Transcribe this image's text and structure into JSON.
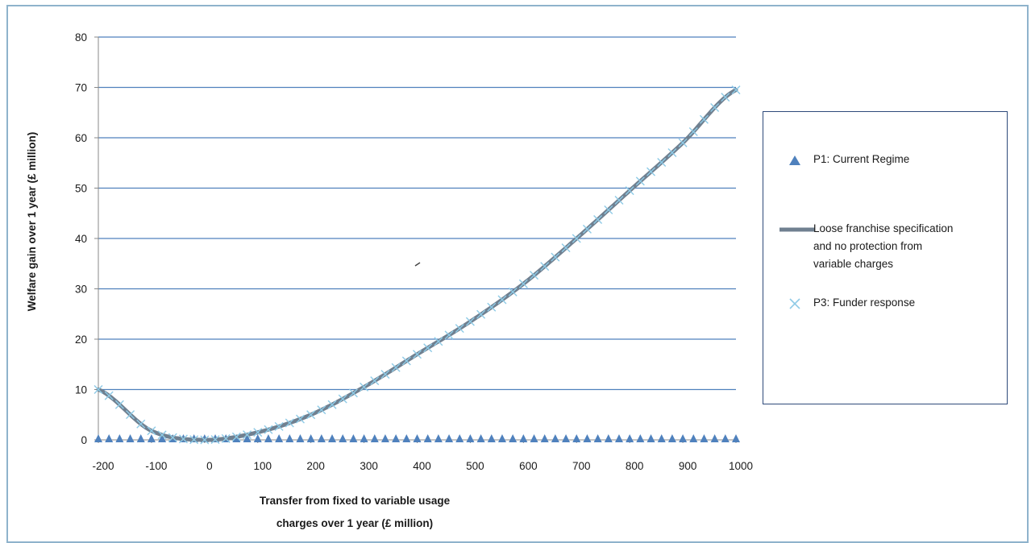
{
  "chart_data": {
    "type": "line",
    "title": "",
    "xlabel_lines": [
      "Transfer from fixed to variable usage",
      "charges over 1 year (£ million)"
    ],
    "ylabel": "Welfare gain over 1 year (£ million)",
    "xlim": [
      -200,
      1000
    ],
    "ylim": [
      0,
      80
    ],
    "x_ticks": [
      "-200",
      "-100",
      "0",
      "100",
      "200",
      "300",
      "400",
      "500",
      "600",
      "700",
      "800",
      "900",
      "1000"
    ],
    "y_ticks": [
      "0",
      "10",
      "20",
      "30",
      "40",
      "50",
      "60",
      "70",
      "80"
    ],
    "grid": "horizontal",
    "legend_position": "right",
    "x": [
      -200,
      -100,
      0,
      100,
      200,
      300,
      400,
      500,
      600,
      700,
      800,
      900,
      1000
    ],
    "series": [
      {
        "name": "P1: Current Regime",
        "marker": "triangle",
        "color": "#4f81bd",
        "values": [
          0,
          0,
          0,
          0,
          0,
          0,
          0,
          0,
          0,
          0,
          0,
          0,
          0
        ]
      },
      {
        "name": "Loose franchise specification and no protection from variable charges",
        "marker": "line",
        "color": "#708090",
        "values": [
          10,
          1.8,
          0,
          1.5,
          5,
          10.5,
          17,
          23.5,
          31,
          40,
          49.5,
          59,
          69.5
        ]
      },
      {
        "name": "P3: Funder response",
        "marker": "x",
        "color": "#8ecae6",
        "values": [
          10,
          1.8,
          0,
          1.5,
          5,
          10.5,
          17,
          23.5,
          31,
          40,
          49.5,
          59,
          69.5
        ]
      }
    ]
  },
  "legend": {
    "items": [
      {
        "lines": [
          "P1: Current Regime"
        ]
      },
      {
        "lines": [
          "Loose franchise specification",
          "and no protection from",
          "variable charges"
        ]
      },
      {
        "lines": [
          "P3: Funder response"
        ]
      }
    ]
  }
}
